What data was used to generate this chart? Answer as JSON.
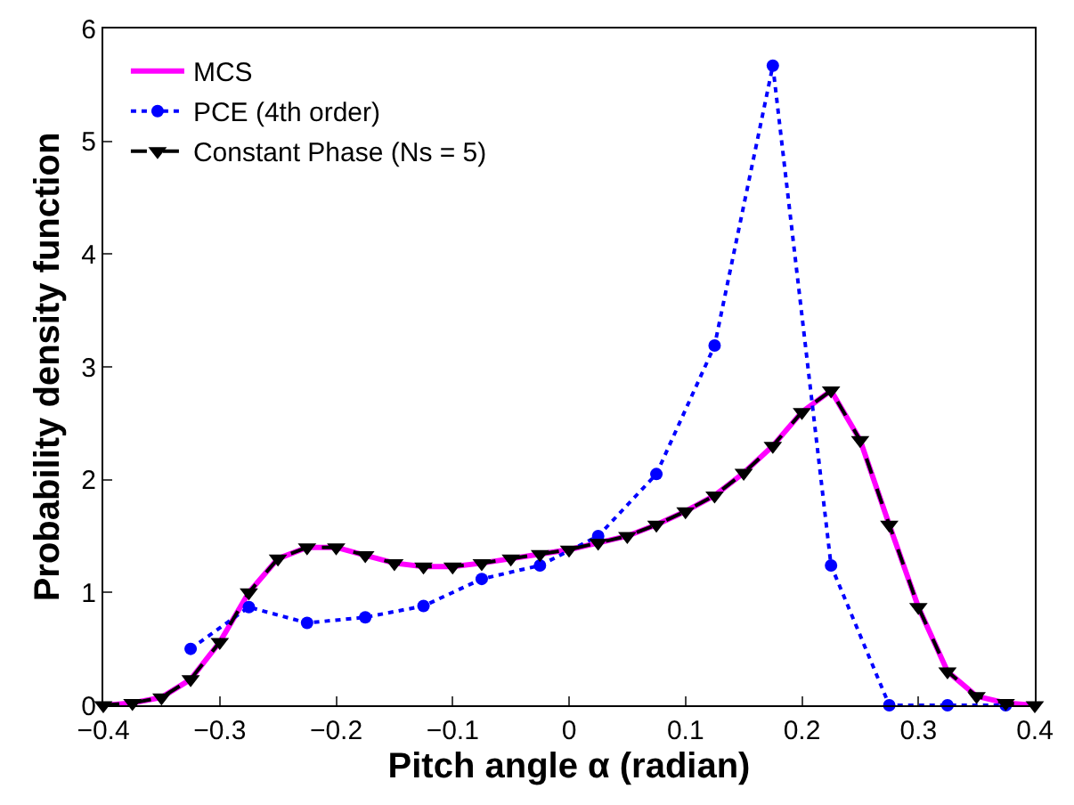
{
  "chart_data": {
    "type": "line",
    "xlabel": "Pitch angle α (radian)",
    "ylabel": "Probability density function",
    "xlim": [
      -0.4,
      0.4
    ],
    "xticks": [
      {
        "value": -0.4,
        "label": "−0.4"
      },
      {
        "value": -0.3,
        "label": "−0.3"
      },
      {
        "value": -0.2,
        "label": "−0.2"
      },
      {
        "value": -0.1,
        "label": "−0.1"
      },
      0,
      0.1,
      0.2,
      0.3,
      0.4
    ],
    "ylim": [
      0,
      6
    ],
    "yticks": [
      0,
      1,
      2,
      3,
      4,
      5,
      6
    ],
    "legend": "top left",
    "series": [
      {
        "name": "MCS",
        "color": "#ff00ff",
        "line_style": "solid",
        "marker": "none",
        "x": [
          -0.4,
          -0.375,
          -0.35,
          -0.325,
          -0.3,
          -0.275,
          -0.25,
          -0.225,
          -0.2,
          -0.175,
          -0.15,
          -0.125,
          -0.1,
          -0.075,
          -0.05,
          -0.025,
          0,
          0.025,
          0.05,
          0.075,
          0.1,
          0.125,
          0.15,
          0.175,
          0.2,
          0.225,
          0.25,
          0.275,
          0.3,
          0.325,
          0.35,
          0.375,
          0.4
        ],
        "values": [
          0,
          0.02,
          0.07,
          0.23,
          0.56,
          1.0,
          1.3,
          1.4,
          1.4,
          1.33,
          1.26,
          1.23,
          1.23,
          1.26,
          1.3,
          1.34,
          1.38,
          1.44,
          1.5,
          1.6,
          1.72,
          1.86,
          2.06,
          2.3,
          2.6,
          2.79,
          2.35,
          1.6,
          0.87,
          0.3,
          0.08,
          0.02,
          0
        ]
      },
      {
        "name": "PCE (4th order)",
        "color": "#0000ff",
        "line_style": "dotted",
        "marker": "circle",
        "x": [
          -0.325,
          -0.275,
          -0.225,
          -0.175,
          -0.125,
          -0.075,
          -0.025,
          0.025,
          0.075,
          0.125,
          0.175,
          0.225,
          0.275,
          0.325,
          0.375
        ],
        "values": [
          0.5,
          0.87,
          0.73,
          0.78,
          0.88,
          1.12,
          1.24,
          1.5,
          2.05,
          3.19,
          5.67,
          1.24,
          0,
          0,
          0
        ]
      },
      {
        "name": "Constant Phase (Ns = 5)",
        "color": "#000000",
        "line_style": "dashed",
        "marker": "triangle",
        "x": [
          -0.4,
          -0.375,
          -0.35,
          -0.325,
          -0.3,
          -0.275,
          -0.25,
          -0.225,
          -0.2,
          -0.175,
          -0.15,
          -0.125,
          -0.1,
          -0.075,
          -0.05,
          -0.025,
          0,
          0.025,
          0.05,
          0.075,
          0.1,
          0.125,
          0.15,
          0.175,
          0.2,
          0.225,
          0.25,
          0.275,
          0.3,
          0.325,
          0.35,
          0.375,
          0.4
        ],
        "values": [
          0,
          0.02,
          0.07,
          0.23,
          0.56,
          1.0,
          1.3,
          1.4,
          1.4,
          1.33,
          1.26,
          1.23,
          1.23,
          1.26,
          1.3,
          1.34,
          1.38,
          1.44,
          1.5,
          1.6,
          1.72,
          1.86,
          2.06,
          2.3,
          2.6,
          2.79,
          2.35,
          1.6,
          0.87,
          0.3,
          0.08,
          0.02,
          0
        ]
      }
    ]
  }
}
